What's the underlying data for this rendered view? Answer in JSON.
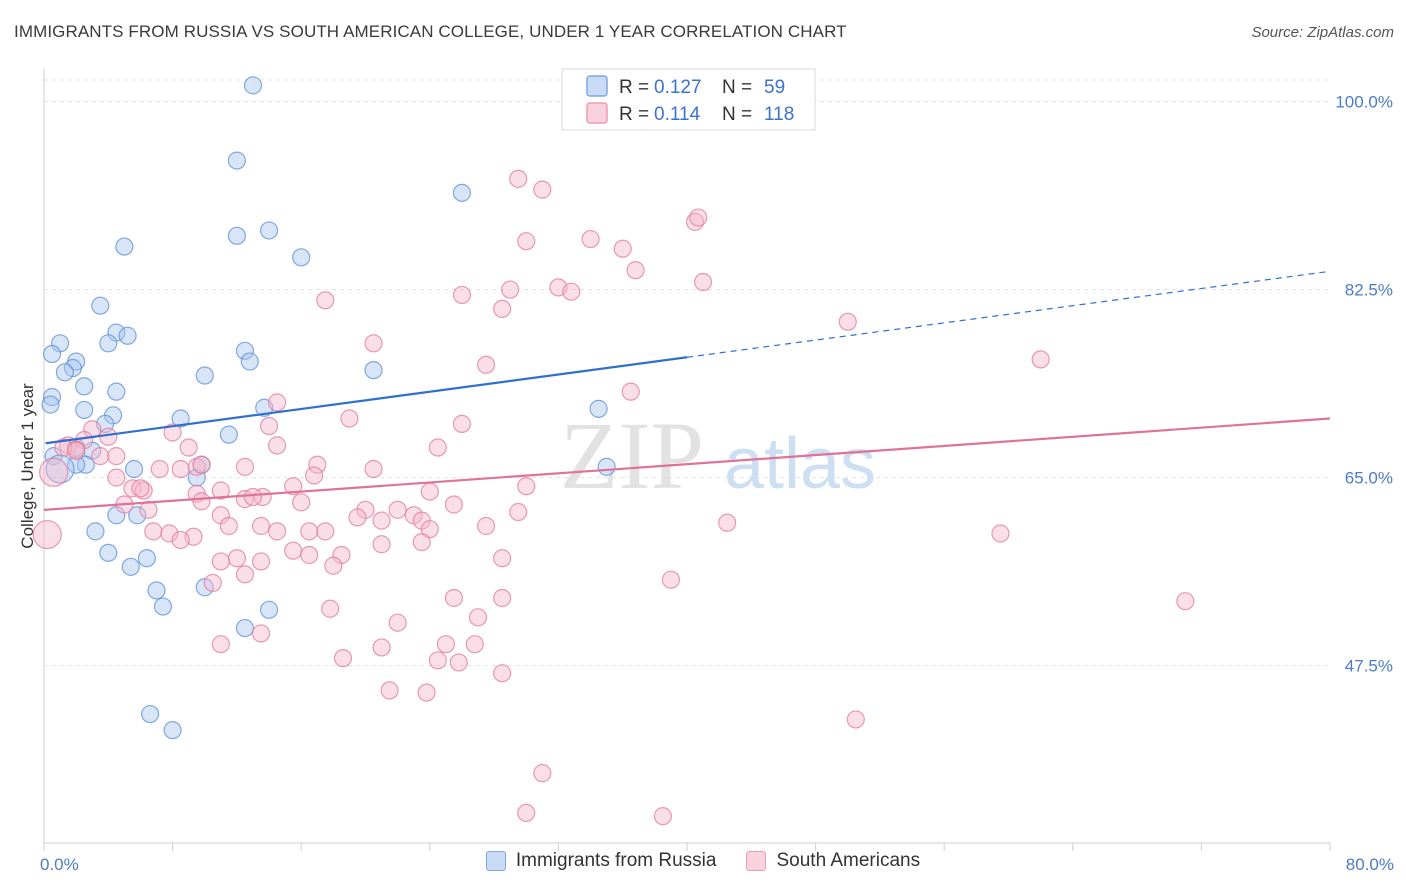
{
  "header": {
    "title": "IMMIGRANTS FROM RUSSIA VS SOUTH AMERICAN COLLEGE, UNDER 1 YEAR CORRELATION CHART",
    "source": "Source: ZipAtlas.com"
  },
  "watermark": {
    "zip": "ZIP",
    "atlas": "atlas"
  },
  "chart_data": {
    "type": "scatter",
    "title": "IMMIGRANTS FROM RUSSIA VS SOUTH AMERICAN COLLEGE, UNDER 1 YEAR CORRELATION CHART",
    "ylabel": "College, Under 1 year",
    "xlim": [
      0,
      80
    ],
    "ylim": [
      31,
      102
    ],
    "x_tick_labels": [
      {
        "value": 0,
        "label": "0.0%"
      },
      {
        "value": 80,
        "label": "80.0%"
      }
    ],
    "y_tick_labels": [
      {
        "value": 100,
        "label": "100.0%"
      },
      {
        "value": 82.5,
        "label": "82.5%"
      },
      {
        "value": 65,
        "label": "65.0%"
      },
      {
        "value": 47.5,
        "label": "47.5%"
      }
    ],
    "grid": true,
    "legend_position": "top-center",
    "stats_legend": [
      {
        "r_label": "R =",
        "r_value": "0.127",
        "n_label": "N =",
        "n_value": "59"
      },
      {
        "r_label": "R =",
        "r_value": "0.114",
        "n_label": "N =",
        "n_value": "118"
      }
    ],
    "series": [
      {
        "name": "Immigrants from Russia",
        "color": "#5b8fd8",
        "fill": "#a9c6ee",
        "trend": {
          "x0": 0.1,
          "y0": 68.2,
          "x1": 40,
          "y1": 76.2,
          "dashed_to_x": 80,
          "dashed_to_y": 84.2
        },
        "points": [
          [
            13,
            101.5
          ],
          [
            12,
            94.5
          ],
          [
            26,
            91.5
          ],
          [
            12,
            87.5
          ],
          [
            14,
            88
          ],
          [
            5,
            86.5
          ],
          [
            16,
            85.5
          ],
          [
            3.5,
            81
          ],
          [
            4.5,
            78.5
          ],
          [
            5.2,
            78.2
          ],
          [
            1,
            77.5
          ],
          [
            4,
            77.5
          ],
          [
            0.5,
            76.5
          ],
          [
            2,
            75.8
          ],
          [
            1.8,
            75.2
          ],
          [
            12.5,
            76.8
          ],
          [
            12.8,
            75.8
          ],
          [
            20.5,
            75
          ],
          [
            10,
            74.5
          ],
          [
            1.3,
            74.8
          ],
          [
            2.5,
            73.5
          ],
          [
            4.5,
            73
          ],
          [
            0.5,
            72.5
          ],
          [
            0.4,
            71.8
          ],
          [
            2.5,
            71.3
          ],
          [
            13.7,
            71.5
          ],
          [
            34.5,
            71.4
          ],
          [
            4.3,
            70.8
          ],
          [
            3.8,
            70
          ],
          [
            8.5,
            70.5
          ],
          [
            11.5,
            69
          ],
          [
            2,
            67.8
          ],
          [
            3,
            67.5
          ],
          [
            0.6,
            67
          ],
          [
            2.6,
            66.2
          ],
          [
            2,
            66.2
          ],
          [
            5.6,
            65.8
          ],
          [
            9.5,
            65
          ],
          [
            9.8,
            66.2
          ],
          [
            35,
            66
          ],
          [
            4.5,
            61.5
          ],
          [
            5.8,
            61.5
          ],
          [
            3.2,
            60
          ],
          [
            4,
            58
          ],
          [
            6.4,
            57.5
          ],
          [
            5.4,
            56.7
          ],
          [
            7,
            54.5
          ],
          [
            10,
            54.8
          ],
          [
            7.4,
            53
          ],
          [
            14,
            52.7
          ],
          [
            12.5,
            51
          ],
          [
            6.6,
            43
          ],
          [
            8,
            41.5
          ],
          [
            1,
            65.8
          ]
        ]
      },
      {
        "name": "South Americans",
        "color": "#e07a9c",
        "fill": "#f5b9cc",
        "trend": {
          "x0": 0,
          "y0": 62,
          "x1": 80,
          "y1": 70.5
        },
        "points": [
          [
            29.5,
            92.8
          ],
          [
            31,
            91.8
          ],
          [
            40.5,
            88.8
          ],
          [
            40.7,
            89.2
          ],
          [
            34,
            87.2
          ],
          [
            30,
            87
          ],
          [
            36,
            86.3
          ],
          [
            29,
            82.5
          ],
          [
            32,
            82.7
          ],
          [
            32.8,
            82.3
          ],
          [
            36.8,
            84.3
          ],
          [
            41,
            83.2
          ],
          [
            26,
            82
          ],
          [
            17.5,
            81.5
          ],
          [
            28.5,
            80.7
          ],
          [
            50,
            79.5
          ],
          [
            20.5,
            77.5
          ],
          [
            27.5,
            75.5
          ],
          [
            62,
            76
          ],
          [
            14.5,
            72
          ],
          [
            36.5,
            73
          ],
          [
            19,
            70.5
          ],
          [
            26,
            70
          ],
          [
            14,
            69.8
          ],
          [
            3,
            69.5
          ],
          [
            4,
            68.8
          ],
          [
            8,
            69.2
          ],
          [
            2.5,
            68.5
          ],
          [
            1.5,
            68
          ],
          [
            2,
            67.6
          ],
          [
            1.2,
            67.8
          ],
          [
            2,
            67.5
          ],
          [
            14.5,
            68
          ],
          [
            9,
            67.8
          ],
          [
            24.5,
            67.8
          ],
          [
            3.5,
            67
          ],
          [
            4.5,
            67
          ],
          [
            0.6,
            65.5
          ],
          [
            17,
            66.2
          ],
          [
            8.5,
            65.8
          ],
          [
            9.5,
            66
          ],
          [
            12.5,
            66
          ],
          [
            9.8,
            66.2
          ],
          [
            7.2,
            65.8
          ],
          [
            20.5,
            65.8
          ],
          [
            16.8,
            65.2
          ],
          [
            4.5,
            65
          ],
          [
            5.5,
            64
          ],
          [
            6.2,
            63.8
          ],
          [
            6,
            64
          ],
          [
            11,
            63.8
          ],
          [
            15.5,
            64.2
          ],
          [
            30,
            64.2
          ],
          [
            24,
            63.7
          ],
          [
            9.5,
            63.5
          ],
          [
            13.6,
            63.2
          ],
          [
            9.8,
            62.8
          ],
          [
            12.5,
            63
          ],
          [
            13,
            63.2
          ],
          [
            16,
            62.7
          ],
          [
            6.5,
            62
          ],
          [
            5,
            62.5
          ],
          [
            25.5,
            62.5
          ],
          [
            22,
            62
          ],
          [
            20,
            62
          ],
          [
            29.5,
            61.8
          ],
          [
            11,
            61.5
          ],
          [
            23,
            61.5
          ],
          [
            19.5,
            61.3
          ],
          [
            21,
            61
          ],
          [
            23.5,
            61
          ],
          [
            11.5,
            60.5
          ],
          [
            27.5,
            60.5
          ],
          [
            13.5,
            60.5
          ],
          [
            14.5,
            60
          ],
          [
            16.5,
            60
          ],
          [
            17.5,
            60
          ],
          [
            24,
            60.2
          ],
          [
            42.5,
            60.8
          ],
          [
            59.5,
            59.8
          ],
          [
            6.8,
            60
          ],
          [
            7.8,
            59.8
          ],
          [
            9.3,
            59.5
          ],
          [
            8.5,
            59.2
          ],
          [
            0.2,
            59.7
          ],
          [
            21,
            58.8
          ],
          [
            23.5,
            59
          ],
          [
            15.5,
            58.2
          ],
          [
            16.5,
            57.8
          ],
          [
            18.5,
            57.8
          ],
          [
            12,
            57.5
          ],
          [
            11,
            57.2
          ],
          [
            13.5,
            57.2
          ],
          [
            18,
            56.8
          ],
          [
            28.5,
            57.5
          ],
          [
            12.5,
            56
          ],
          [
            10.5,
            55.2
          ],
          [
            39,
            55.5
          ],
          [
            25.5,
            53.8
          ],
          [
            28.5,
            53.8
          ],
          [
            71,
            53.5
          ],
          [
            17.8,
            52.8
          ],
          [
            27,
            52
          ],
          [
            22,
            51.5
          ],
          [
            13.5,
            50.5
          ],
          [
            11,
            49.5
          ],
          [
            25,
            49.5
          ],
          [
            26.8,
            49.5
          ],
          [
            21,
            49.2
          ],
          [
            18.6,
            48.2
          ],
          [
            24.5,
            48
          ],
          [
            25.8,
            47.8
          ],
          [
            28.5,
            46.8
          ],
          [
            21.5,
            45.2
          ],
          [
            23.8,
            45
          ],
          [
            50.5,
            42.5
          ],
          [
            31,
            37.5
          ],
          [
            30,
            33.8
          ],
          [
            38.5,
            33.5
          ]
        ]
      }
    ]
  }
}
